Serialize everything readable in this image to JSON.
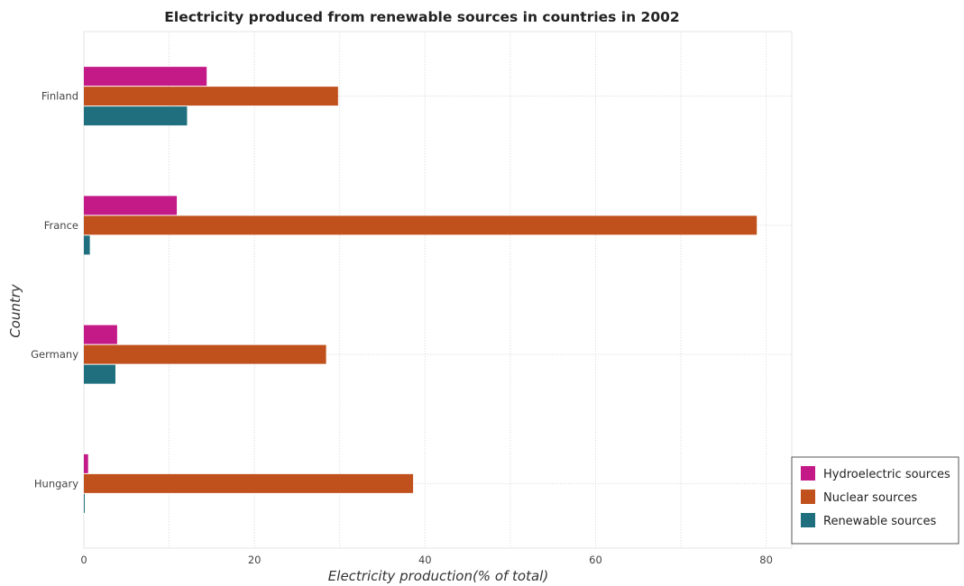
{
  "chart_data": {
    "type": "bar",
    "orientation": "horizontal",
    "title": "Electricity produced from renewable sources in countries in 2002",
    "xlabel": "Electricity production(% of total)",
    "ylabel": "Country",
    "xlim": [
      0,
      83
    ],
    "xticks": [
      0,
      20,
      40,
      60,
      80
    ],
    "grid": true,
    "legend_position": "bottom-right",
    "categories": [
      "Finland",
      "France",
      "Germany",
      "Hungary"
    ],
    "series": [
      {
        "name": "Hydroelectric sources",
        "color": "#c41a88",
        "values": [
          14.4,
          10.9,
          3.9,
          0.5
        ]
      },
      {
        "name": "Nuclear sources",
        "color": "#c0501c",
        "values": [
          29.8,
          78.9,
          28.4,
          38.6
        ]
      },
      {
        "name": "Renewable sources",
        "color": "#1f6f7e",
        "values": [
          12.1,
          0.7,
          3.7,
          0.1
        ]
      }
    ]
  }
}
